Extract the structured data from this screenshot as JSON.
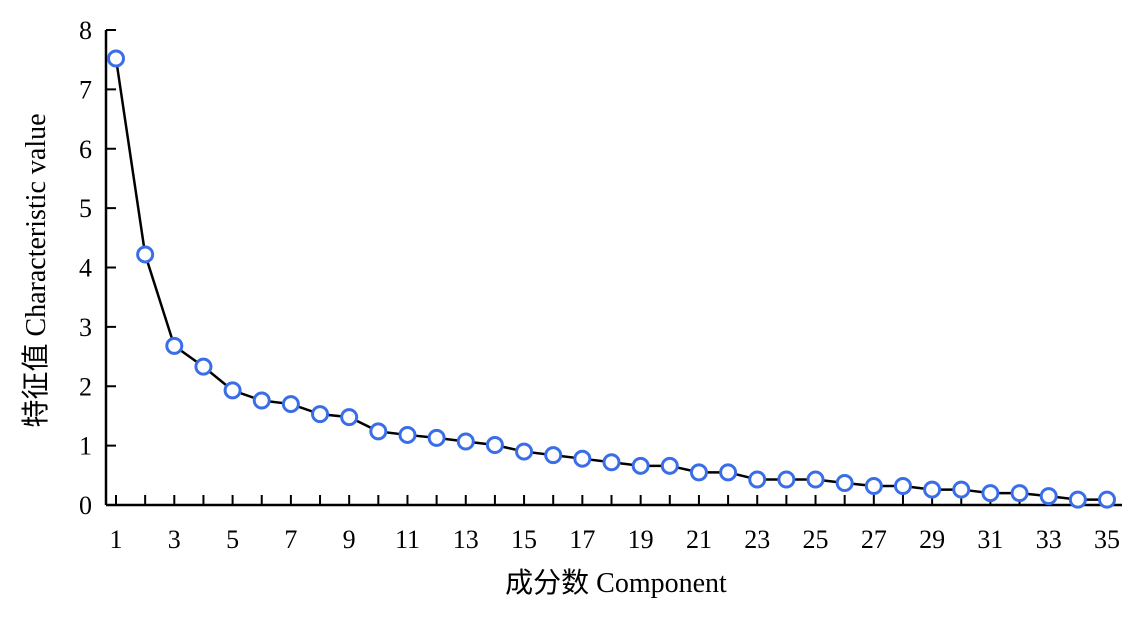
{
  "chart_data": {
    "type": "line",
    "title": "",
    "xlabel": "成分数 Component",
    "ylabel": "特征值 Characteristic value",
    "xlim": [
      1,
      35
    ],
    "ylim": [
      0,
      8
    ],
    "x_ticks": [
      1,
      3,
      5,
      7,
      9,
      11,
      13,
      15,
      17,
      19,
      21,
      23,
      25,
      27,
      29,
      31,
      33,
      35
    ],
    "y_ticks": [
      0,
      1,
      2,
      3,
      4,
      5,
      6,
      7,
      8
    ],
    "grid": false,
    "legend": "none",
    "x": [
      1,
      2,
      3,
      4,
      5,
      6,
      7,
      8,
      9,
      10,
      11,
      12,
      13,
      14,
      15,
      16,
      17,
      18,
      19,
      20,
      21,
      22,
      23,
      24,
      25,
      26,
      27,
      28,
      29,
      30,
      31,
      32,
      33,
      34,
      35
    ],
    "series": [
      {
        "values": [
          7.52,
          4.22,
          2.68,
          2.33,
          1.93,
          1.76,
          1.7,
          1.53,
          1.48,
          1.24,
          1.18,
          1.13,
          1.07,
          1.01,
          0.9,
          0.84,
          0.78,
          0.72,
          0.66,
          0.66,
          0.55,
          0.55,
          0.43,
          0.43,
          0.43,
          0.37,
          0.32,
          0.32,
          0.26,
          0.26,
          0.2,
          0.2,
          0.15,
          0.09,
          0.09
        ]
      }
    ],
    "colors": {
      "line": "#000000",
      "marker_edge": "#3a6ee8",
      "marker_fill": "#ffffff"
    }
  }
}
